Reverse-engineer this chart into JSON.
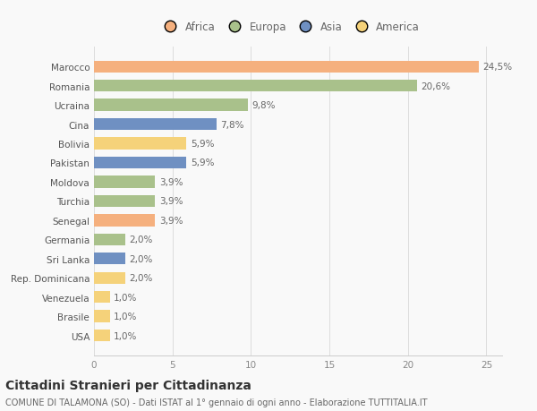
{
  "countries": [
    "Marocco",
    "Romania",
    "Ucraina",
    "Cina",
    "Bolivia",
    "Pakistan",
    "Moldova",
    "Turchia",
    "Senegal",
    "Germania",
    "Sri Lanka",
    "Rep. Dominicana",
    "Venezuela",
    "Brasile",
    "USA"
  ],
  "values": [
    24.5,
    20.6,
    9.8,
    7.8,
    5.9,
    5.9,
    3.9,
    3.9,
    3.9,
    2.0,
    2.0,
    2.0,
    1.0,
    1.0,
    1.0
  ],
  "labels": [
    "24,5%",
    "20,6%",
    "9,8%",
    "7,8%",
    "5,9%",
    "5,9%",
    "3,9%",
    "3,9%",
    "3,9%",
    "2,0%",
    "2,0%",
    "2,0%",
    "1,0%",
    "1,0%",
    "1,0%"
  ],
  "colors": [
    "#F5B07E",
    "#A9C18B",
    "#A9C18B",
    "#6F90C2",
    "#F5D27A",
    "#6F90C2",
    "#A9C18B",
    "#A9C18B",
    "#F5B07E",
    "#A9C18B",
    "#6F90C2",
    "#F5D27A",
    "#F5D27A",
    "#F5D27A",
    "#F5D27A"
  ],
  "legend_labels": [
    "Africa",
    "Europa",
    "Asia",
    "America"
  ],
  "legend_colors": [
    "#F5B07E",
    "#A9C18B",
    "#6F90C2",
    "#F5D27A"
  ],
  "title": "Cittadini Stranieri per Cittadinanza",
  "subtitle": "COMUNE DI TALAMONA (SO) - Dati ISTAT al 1° gennaio di ogni anno - Elaborazione TUTTITALIA.IT",
  "xlim": [
    0,
    26
  ],
  "xticks": [
    0,
    5,
    10,
    15,
    20,
    25
  ],
  "bg_color": "#f9f9f9",
  "bar_height": 0.62,
  "label_fontsize": 7.5,
  "tick_fontsize": 7.5,
  "title_fontsize": 10,
  "subtitle_fontsize": 7
}
